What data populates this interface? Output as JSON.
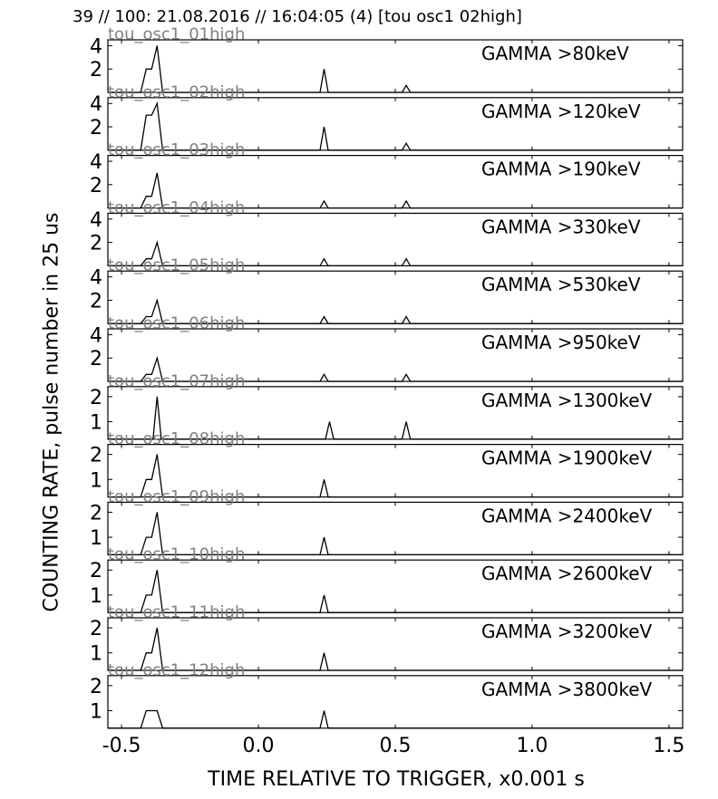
{
  "header": "39 // 100:   21.08.2016 // 16:04:05 (4)  [tou osc1 02high]",
  "chart_data": {
    "type": "line",
    "ylabel": "COUNTING RATE,    pulse number in 25 us",
    "xlabel": "TIME RELATIVE TO TRIGGER,   x0.001 s",
    "xlim": [
      -0.55,
      1.55
    ],
    "x_ticks": [
      "-0.5",
      "0.0",
      "0.5",
      "1.0",
      "1.5"
    ],
    "x_tick_values": [
      -0.5,
      0.0,
      0.5,
      1.0,
      1.5
    ],
    "grid": false,
    "panels": [
      {
        "name": "GAMMA >80keV",
        "osc": "tou_osc1_01high",
        "ylim": [
          0,
          4.5
        ],
        "yticks": [
          2,
          4
        ],
        "points": [
          [
            -0.55,
            0
          ],
          [
            -0.43,
            0
          ],
          [
            -0.41,
            2
          ],
          [
            -0.39,
            2
          ],
          [
            -0.37,
            4
          ],
          [
            -0.35,
            0
          ],
          [
            0.225,
            0
          ],
          [
            0.24,
            2
          ],
          [
            0.255,
            0
          ],
          [
            0.525,
            0
          ],
          [
            0.54,
            0.6
          ],
          [
            0.555,
            0
          ],
          [
            1.55,
            0
          ]
        ]
      },
      {
        "name": "GAMMA >120keV",
        "osc": "tou_osc1_02high",
        "ylim": [
          0,
          4.5
        ],
        "yticks": [
          2,
          4
        ],
        "points": [
          [
            -0.55,
            0
          ],
          [
            -0.43,
            0
          ],
          [
            -0.41,
            3
          ],
          [
            -0.39,
            3
          ],
          [
            -0.37,
            4
          ],
          [
            -0.35,
            0
          ],
          [
            0.225,
            0
          ],
          [
            0.24,
            2
          ],
          [
            0.255,
            0
          ],
          [
            0.525,
            0
          ],
          [
            0.54,
            0.6
          ],
          [
            0.555,
            0
          ],
          [
            1.55,
            0
          ]
        ]
      },
      {
        "name": "GAMMA >190keV",
        "osc": "tou_osc1_03high",
        "ylim": [
          0,
          4.5
        ],
        "yticks": [
          2,
          4
        ],
        "points": [
          [
            -0.55,
            0
          ],
          [
            -0.43,
            0
          ],
          [
            -0.41,
            1
          ],
          [
            -0.39,
            1
          ],
          [
            -0.37,
            3
          ],
          [
            -0.35,
            0
          ],
          [
            0.225,
            0
          ],
          [
            0.24,
            0.6
          ],
          [
            0.255,
            0
          ],
          [
            0.525,
            0
          ],
          [
            0.54,
            0.6
          ],
          [
            0.555,
            0
          ],
          [
            1.55,
            0
          ]
        ]
      },
      {
        "name": "GAMMA >330keV",
        "osc": "tou_osc1_04high",
        "ylim": [
          0,
          4.5
        ],
        "yticks": [
          2,
          4
        ],
        "points": [
          [
            -0.55,
            0
          ],
          [
            -0.43,
            0
          ],
          [
            -0.41,
            0.6
          ],
          [
            -0.39,
            0.6
          ],
          [
            -0.37,
            2
          ],
          [
            -0.35,
            0
          ],
          [
            0.225,
            0
          ],
          [
            0.24,
            0.6
          ],
          [
            0.255,
            0
          ],
          [
            0.525,
            0
          ],
          [
            0.54,
            0.6
          ],
          [
            0.555,
            0
          ],
          [
            1.55,
            0
          ]
        ]
      },
      {
        "name": "GAMMA >530keV",
        "osc": "tou_osc1_05high",
        "ylim": [
          0,
          4.5
        ],
        "yticks": [
          2,
          4
        ],
        "points": [
          [
            -0.55,
            0
          ],
          [
            -0.43,
            0
          ],
          [
            -0.41,
            0.6
          ],
          [
            -0.39,
            0.6
          ],
          [
            -0.37,
            2
          ],
          [
            -0.35,
            0
          ],
          [
            0.225,
            0
          ],
          [
            0.24,
            0.6
          ],
          [
            0.255,
            0
          ],
          [
            0.525,
            0
          ],
          [
            0.54,
            0.6
          ],
          [
            0.555,
            0
          ],
          [
            1.55,
            0
          ]
        ]
      },
      {
        "name": "GAMMA >950keV",
        "osc": "tou_osc1_06high",
        "ylim": [
          0,
          4.5
        ],
        "yticks": [
          2,
          4
        ],
        "points": [
          [
            -0.55,
            0
          ],
          [
            -0.43,
            0
          ],
          [
            -0.41,
            0.6
          ],
          [
            -0.39,
            0.6
          ],
          [
            -0.37,
            2
          ],
          [
            -0.35,
            0
          ],
          [
            0.225,
            0
          ],
          [
            0.24,
            0.6
          ],
          [
            0.255,
            0
          ],
          [
            0.525,
            0
          ],
          [
            0.54,
            0.6
          ],
          [
            0.555,
            0
          ],
          [
            1.55,
            0
          ]
        ]
      },
      {
        "name": "GAMMA >1300keV",
        "osc": "tou_osc1_07high",
        "ylim": [
          0.3,
          2.4
        ],
        "yticks": [
          1,
          2
        ],
        "points": [
          [
            -0.55,
            0.3
          ],
          [
            -0.385,
            0.3
          ],
          [
            -0.37,
            2
          ],
          [
            -0.355,
            0.3
          ],
          [
            0.245,
            0.3
          ],
          [
            0.26,
            1
          ],
          [
            0.275,
            0.3
          ],
          [
            0.525,
            0.3
          ],
          [
            0.54,
            1
          ],
          [
            0.555,
            0.3
          ],
          [
            1.55,
            0.3
          ]
        ]
      },
      {
        "name": "GAMMA >1900keV",
        "osc": "tou_osc1_08high",
        "ylim": [
          0.3,
          2.4
        ],
        "yticks": [
          1,
          2
        ],
        "points": [
          [
            -0.55,
            0.3
          ],
          [
            -0.43,
            0.3
          ],
          [
            -0.41,
            1
          ],
          [
            -0.39,
            1
          ],
          [
            -0.37,
            2
          ],
          [
            -0.35,
            0.3
          ],
          [
            0.225,
            0.3
          ],
          [
            0.24,
            1
          ],
          [
            0.255,
            0.3
          ],
          [
            1.55,
            0.3
          ]
        ]
      },
      {
        "name": "GAMMA >2400keV",
        "osc": "tou_osc1_09high",
        "ylim": [
          0.3,
          2.4
        ],
        "yticks": [
          1,
          2
        ],
        "points": [
          [
            -0.55,
            0.3
          ],
          [
            -0.43,
            0.3
          ],
          [
            -0.41,
            1
          ],
          [
            -0.39,
            1
          ],
          [
            -0.37,
            2
          ],
          [
            -0.35,
            0.3
          ],
          [
            0.225,
            0.3
          ],
          [
            0.24,
            1
          ],
          [
            0.255,
            0.3
          ],
          [
            1.55,
            0.3
          ]
        ]
      },
      {
        "name": "GAMMA >2600keV",
        "osc": "tou_osc1_10high",
        "ylim": [
          0.3,
          2.4
        ],
        "yticks": [
          1,
          2
        ],
        "points": [
          [
            -0.55,
            0.3
          ],
          [
            -0.43,
            0.3
          ],
          [
            -0.41,
            1
          ],
          [
            -0.39,
            1
          ],
          [
            -0.37,
            2
          ],
          [
            -0.35,
            0.3
          ],
          [
            0.225,
            0.3
          ],
          [
            0.24,
            1
          ],
          [
            0.255,
            0.3
          ],
          [
            1.55,
            0.3
          ]
        ]
      },
      {
        "name": "GAMMA >3200keV",
        "osc": "tou_osc1_11high",
        "ylim": [
          0.3,
          2.4
        ],
        "yticks": [
          1,
          2
        ],
        "points": [
          [
            -0.55,
            0.3
          ],
          [
            -0.43,
            0.3
          ],
          [
            -0.41,
            1
          ],
          [
            -0.39,
            1
          ],
          [
            -0.37,
            2
          ],
          [
            -0.35,
            0.3
          ],
          [
            0.225,
            0.3
          ],
          [
            0.24,
            1
          ],
          [
            0.255,
            0.3
          ],
          [
            1.55,
            0.3
          ]
        ]
      },
      {
        "name": "GAMMA >3800keV",
        "osc": "tou_osc1_12high",
        "ylim": [
          0.3,
          2.4
        ],
        "yticks": [
          1,
          2
        ],
        "points": [
          [
            -0.55,
            0.3
          ],
          [
            -0.43,
            0.3
          ],
          [
            -0.41,
            1
          ],
          [
            -0.37,
            1
          ],
          [
            -0.35,
            0.3
          ],
          [
            0.225,
            0.3
          ],
          [
            0.24,
            1
          ],
          [
            0.255,
            0.3
          ],
          [
            1.55,
            0.3
          ]
        ]
      }
    ]
  }
}
